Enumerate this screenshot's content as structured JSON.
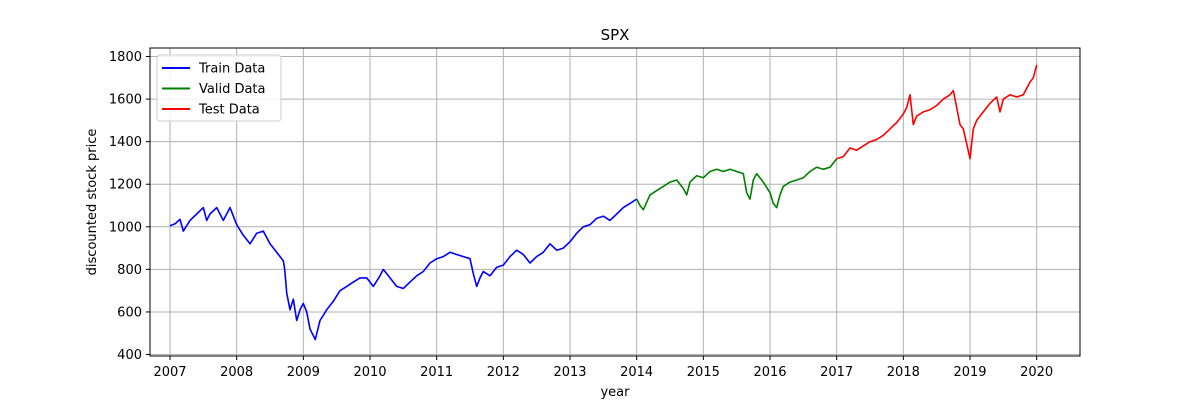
{
  "chart_data": {
    "type": "line",
    "title": "SPX",
    "xlabel": "year",
    "ylabel": "discounted stock price",
    "xlim": [
      2006.7,
      2020.65
    ],
    "ylim": [
      393,
      1840
    ],
    "x_ticks": [
      2007,
      2008,
      2009,
      2010,
      2011,
      2012,
      2013,
      2014,
      2015,
      2016,
      2017,
      2018,
      2019,
      2020
    ],
    "x_tick_labels": [
      "2007",
      "2008",
      "2009",
      "2010",
      "2011",
      "2012",
      "2013",
      "2014",
      "2015",
      "2016",
      "2017",
      "2018",
      "2019",
      "2020"
    ],
    "y_ticks": [
      400,
      600,
      800,
      1000,
      1200,
      1400,
      1600,
      1800
    ],
    "y_tick_labels": [
      "400",
      "600",
      "800",
      "1000",
      "1200",
      "1400",
      "1600",
      "1800"
    ],
    "grid": true,
    "legend_position": "top-left",
    "series": [
      {
        "name": "Train Data",
        "color": "#0000ff",
        "x": [
          2007.0,
          2007.08,
          2007.15,
          2007.2,
          2007.3,
          2007.4,
          2007.5,
          2007.55,
          2007.6,
          2007.7,
          2007.8,
          2007.9,
          2008.0,
          2008.1,
          2008.2,
          2008.3,
          2008.4,
          2008.5,
          2008.6,
          2008.7,
          2008.72,
          2008.75,
          2008.8,
          2008.85,
          2008.9,
          2008.95,
          2009.0,
          2009.05,
          2009.1,
          2009.18,
          2009.25,
          2009.35,
          2009.45,
          2009.55,
          2009.65,
          2009.75,
          2009.85,
          2009.95,
          2010.05,
          2010.15,
          2010.2,
          2010.3,
          2010.4,
          2010.5,
          2010.6,
          2010.7,
          2010.8,
          2010.9,
          2011.0,
          2011.1,
          2011.2,
          2011.3,
          2011.4,
          2011.5,
          2011.55,
          2011.6,
          2011.65,
          2011.7,
          2011.8,
          2011.9,
          2012.0,
          2012.1,
          2012.2,
          2012.3,
          2012.4,
          2012.5,
          2012.6,
          2012.7,
          2012.8,
          2012.9,
          2013.0,
          2013.1,
          2013.2,
          2013.3,
          2013.4,
          2013.5,
          2013.6,
          2013.7,
          2013.8,
          2013.9,
          2014.0
        ],
        "y": [
          1005,
          1015,
          1035,
          980,
          1030,
          1060,
          1090,
          1030,
          1060,
          1090,
          1030,
          1090,
          1010,
          960,
          920,
          970,
          980,
          920,
          880,
          840,
          800,
          690,
          610,
          660,
          560,
          610,
          640,
          600,
          520,
          470,
          560,
          610,
          650,
          700,
          720,
          740,
          760,
          760,
          720,
          770,
          800,
          760,
          720,
          710,
          740,
          770,
          790,
          830,
          850,
          860,
          880,
          870,
          860,
          850,
          780,
          720,
          760,
          790,
          770,
          810,
          820,
          860,
          890,
          870,
          830,
          860,
          880,
          920,
          890,
          900,
          930,
          970,
          1000,
          1010,
          1040,
          1050,
          1030,
          1060,
          1090,
          1110,
          1130
        ]
      },
      {
        "name": "Valid Data",
        "color": "#008000",
        "x": [
          2014.0,
          2014.05,
          2014.1,
          2014.2,
          2014.3,
          2014.4,
          2014.5,
          2014.6,
          2014.7,
          2014.75,
          2014.8,
          2014.9,
          2015.0,
          2015.1,
          2015.2,
          2015.3,
          2015.4,
          2015.5,
          2015.6,
          2015.65,
          2015.7,
          2015.75,
          2015.8,
          2015.9,
          2016.0,
          2016.05,
          2016.1,
          2016.15,
          2016.2,
          2016.3,
          2016.4,
          2016.5,
          2016.6,
          2016.7,
          2016.8,
          2016.9,
          2017.0
        ],
        "y": [
          1130,
          1100,
          1080,
          1150,
          1170,
          1190,
          1210,
          1220,
          1180,
          1150,
          1210,
          1240,
          1230,
          1260,
          1270,
          1260,
          1270,
          1260,
          1250,
          1160,
          1130,
          1220,
          1250,
          1210,
          1160,
          1110,
          1090,
          1150,
          1190,
          1210,
          1220,
          1230,
          1260,
          1280,
          1270,
          1280,
          1320
        ]
      },
      {
        "name": "Test Data",
        "color": "#ff0000",
        "x": [
          2017.0,
          2017.1,
          2017.2,
          2017.3,
          2017.4,
          2017.5,
          2017.6,
          2017.7,
          2017.8,
          2017.9,
          2018.0,
          2018.05,
          2018.1,
          2018.15,
          2018.2,
          2018.3,
          2018.4,
          2018.5,
          2018.6,
          2018.7,
          2018.75,
          2018.8,
          2018.85,
          2018.9,
          2018.95,
          2019.0,
          2019.05,
          2019.1,
          2019.2,
          2019.3,
          2019.4,
          2019.45,
          2019.5,
          2019.6,
          2019.7,
          2019.8,
          2019.9,
          2019.95,
          2020.0
        ],
        "y": [
          1320,
          1330,
          1370,
          1360,
          1380,
          1400,
          1410,
          1430,
          1460,
          1490,
          1530,
          1560,
          1620,
          1480,
          1520,
          1540,
          1550,
          1570,
          1600,
          1620,
          1640,
          1560,
          1480,
          1460,
          1390,
          1320,
          1460,
          1500,
          1540,
          1580,
          1610,
          1540,
          1600,
          1620,
          1610,
          1620,
          1680,
          1700,
          1760
        ]
      }
    ]
  }
}
